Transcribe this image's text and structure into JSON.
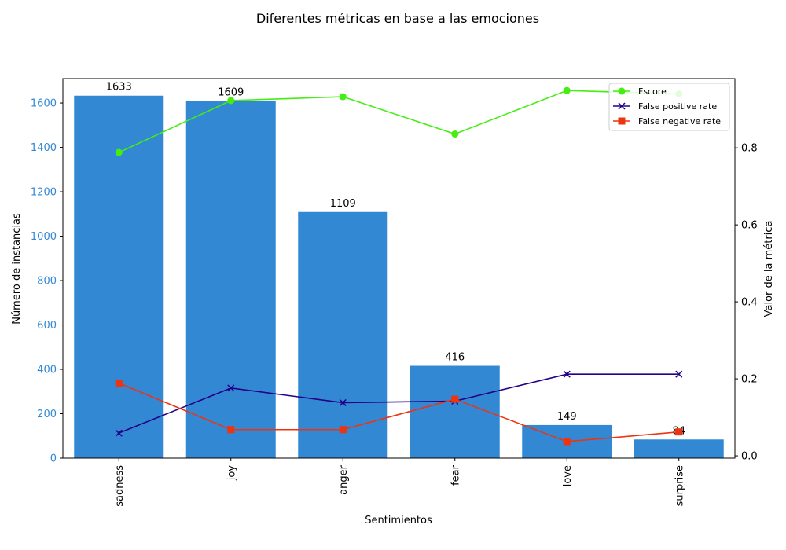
{
  "chart_data": {
    "type": "bar",
    "title": "Diferentes métricas en base a las emociones",
    "xlabel": "Sentimientos",
    "ylabel": "Número de instancias",
    "y2label": "Valor de la métrica",
    "categories": [
      "sadness",
      "joy",
      "anger",
      "fear",
      "love",
      "surprise"
    ],
    "bar_values": [
      1633,
      1609,
      1109,
      416,
      149,
      84
    ],
    "bar_color": "#3388d4",
    "ylim": [
      0,
      1710
    ],
    "yticks": [
      0,
      200,
      400,
      600,
      800,
      1000,
      1200,
      1400,
      1600
    ],
    "ytick_color": "#3388d4",
    "y2lim": [
      -0.006,
      0.98
    ],
    "y2ticks": [
      0.0,
      0.2,
      0.4,
      0.6,
      0.8
    ],
    "line_series": [
      {
        "name": "Fscore",
        "color": "#44ee11",
        "marker": "circle",
        "values": [
          0.788,
          0.923,
          0.933,
          0.836,
          0.949,
          0.94
        ]
      },
      {
        "name": "False positive rate",
        "color": "#220088",
        "marker": "x",
        "values": [
          0.059,
          0.176,
          0.138,
          0.142,
          0.212,
          0.212
        ]
      },
      {
        "name": "False negative rate",
        "color": "#ee3311",
        "marker": "square",
        "values": [
          0.189,
          0.068,
          0.068,
          0.147,
          0.037,
          0.062
        ]
      }
    ],
    "legend_position": "top-right",
    "grid": false
  }
}
